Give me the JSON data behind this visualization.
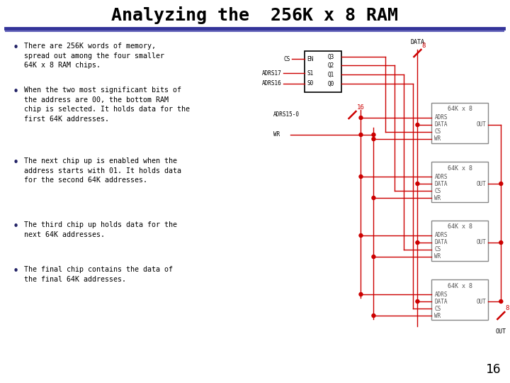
{
  "title": "Analyzing the  256K x 8 RAM",
  "title_font": 18,
  "title_color": "#000000",
  "bg_color": "#ffffff",
  "line_color": "#cc0000",
  "text_color": "#000000",
  "chip_text_color": "#555555",
  "bullet_color": "#222266",
  "bullets": [
    "There are 256K words of memory,\nspread out among the four smaller\n64K x 8 RAM chips.",
    "When the two most significant bits of\nthe address are 00, the bottom RAM\nchip is selected. It holds data for the\nfirst 64K addresses.",
    "The next chip up is enabled when the\naddress starts with 01. It holds data\nfor the second 64K addresses.",
    "The third chip up holds data for the\nnext 64K addresses.",
    "The final chip contains the data of\nthe final 64K addresses."
  ],
  "page_num": "16",
  "header_line_color": "#333399",
  "header_line2_color": "#6666bb"
}
